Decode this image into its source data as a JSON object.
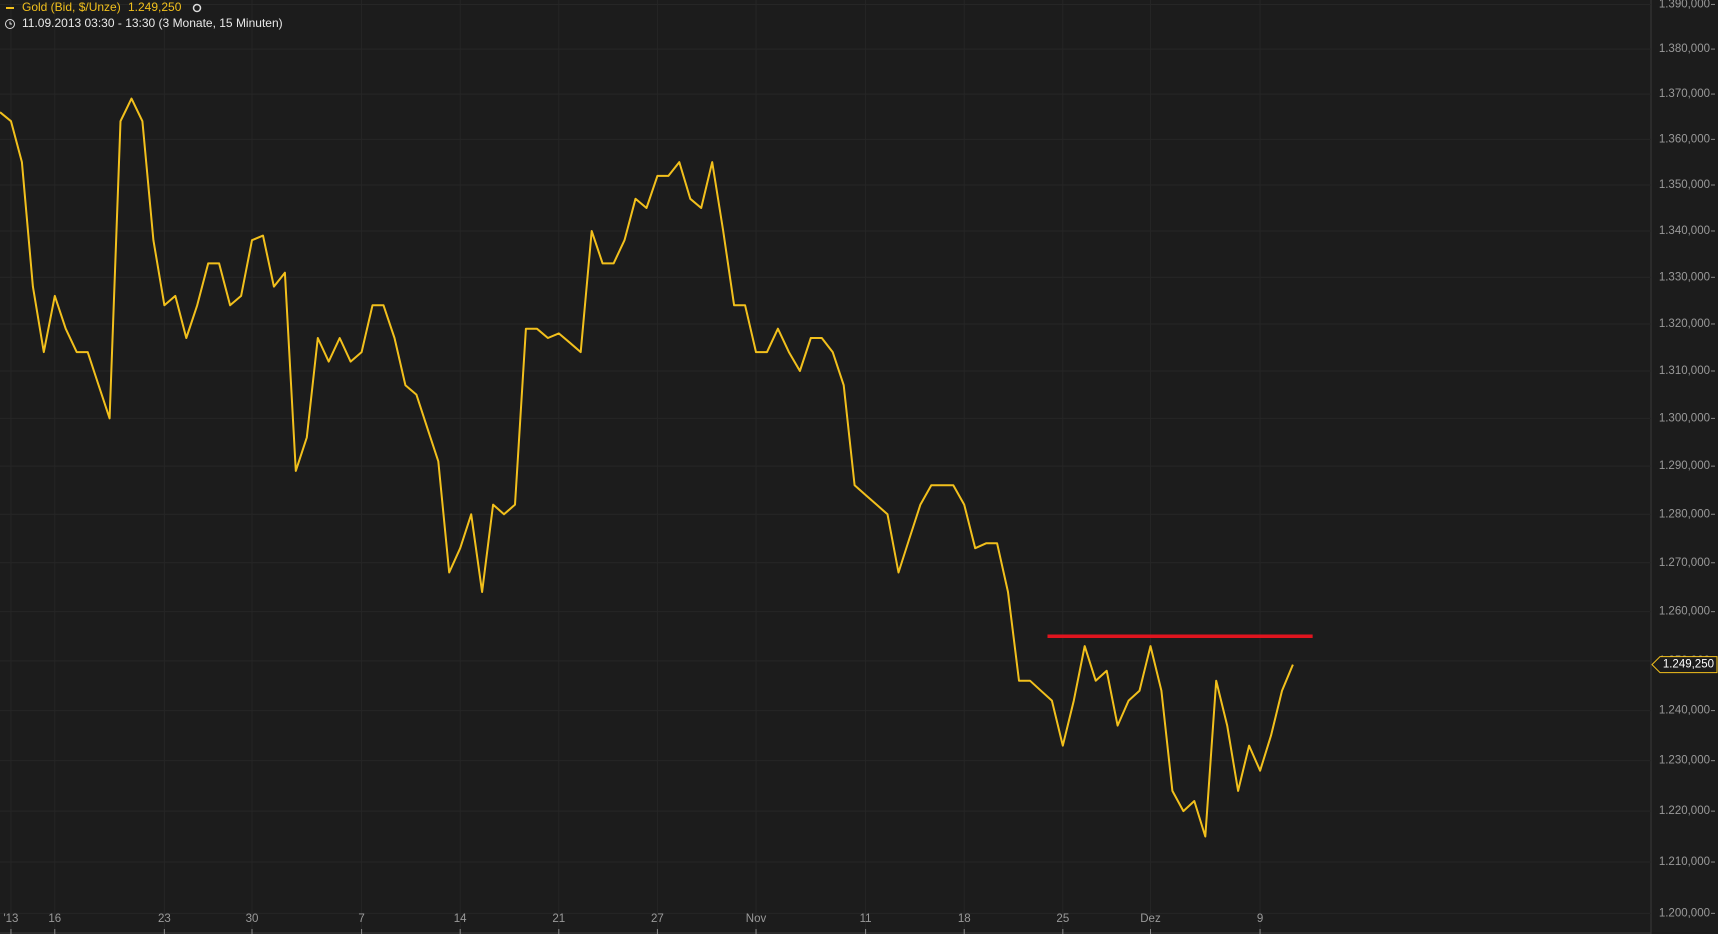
{
  "chart_data": {
    "type": "line",
    "title": "Gold (Bid, $/Unze)",
    "subtitle": "11.09.2013 03:30 - 13:30 (3 Monate, 15 Minuten)",
    "log_scale": true,
    "grid": true,
    "categories": [
      null,
      "'13",
      null,
      null,
      null,
      "16",
      null,
      null,
      null,
      null,
      null,
      null,
      null,
      null,
      null,
      "23",
      null,
      null,
      null,
      null,
      null,
      null,
      null,
      "30",
      null,
      null,
      null,
      null,
      null,
      null,
      null,
      null,
      null,
      "7",
      null,
      null,
      null,
      null,
      null,
      null,
      null,
      null,
      "14",
      null,
      null,
      null,
      null,
      null,
      null,
      null,
      null,
      "21",
      null,
      null,
      null,
      null,
      null,
      null,
      null,
      null,
      "27",
      null,
      null,
      null,
      null,
      null,
      null,
      null,
      null,
      "Nov",
      null,
      null,
      null,
      null,
      null,
      null,
      null,
      null,
      null,
      "11",
      null,
      null,
      null,
      null,
      null,
      null,
      null,
      null,
      "18",
      null,
      null,
      null,
      null,
      null,
      null,
      null,
      null,
      "25",
      null,
      null,
      null,
      null,
      null,
      null,
      null,
      "Dez",
      null,
      null,
      null,
      null,
      null,
      null,
      null,
      null,
      null,
      "9",
      null,
      null,
      null
    ],
    "series": [
      {
        "name": "Gold (Bid, $/Unze)",
        "color": "#f2c01c",
        "last_label": "1.249,250",
        "values": [
          1366,
          1364,
          1355,
          1328,
          1314,
          1326,
          1319,
          1314,
          1314,
          1307,
          1300,
          1364,
          1369,
          1364,
          1338,
          1324,
          1326,
          1317,
          1324,
          1333,
          1333,
          1324,
          1326,
          1338,
          1339,
          1328,
          1331,
          1289,
          1296,
          1317,
          1312,
          1317,
          1312,
          1314,
          1324,
          1324,
          1317,
          1307,
          1305,
          1298,
          1291,
          1268,
          1273,
          1280,
          1264,
          1282,
          1280,
          1282,
          1319,
          1319,
          1317,
          1318,
          1316,
          1314,
          1340,
          1333,
          1333,
          1338,
          1347,
          1345,
          1352,
          1352,
          1355,
          1347,
          1345,
          1355,
          1340,
          1324,
          1324,
          1314,
          1314,
          1319,
          1314,
          1310,
          1317,
          1317,
          1314,
          1307,
          1286,
          1284,
          1282,
          1280,
          1268,
          1275,
          1282,
          1286,
          1286,
          1286,
          1282,
          1273,
          1274,
          1274,
          1264,
          1246,
          1246,
          1244,
          1242,
          1233,
          1242,
          1253,
          1246,
          1248,
          1237,
          1242,
          1244,
          1253,
          1244,
          1224,
          1220,
          1222,
          1215,
          1246,
          1237,
          1224,
          1233,
          1228,
          1235,
          1244,
          1249.25
        ]
      }
    ],
    "reference_lines": [
      {
        "value": 1255,
        "color": "#e0141e"
      }
    ],
    "ylim": [
      1196,
      1391
    ],
    "yticks": [
      {
        "value": 1200,
        "label": "1.200,000"
      },
      {
        "value": 1210,
        "label": "1.210,000"
      },
      {
        "value": 1220,
        "label": "1.220,000"
      },
      {
        "value": 1230,
        "label": "1.230,000"
      },
      {
        "value": 1240,
        "label": "1.240,000"
      },
      {
        "value": 1250,
        "label": "1.250,000"
      },
      {
        "value": 1260,
        "label": "1.260,000"
      },
      {
        "value": 1270,
        "label": "1.270,000"
      },
      {
        "value": 1280,
        "label": "1.280,000"
      },
      {
        "value": 1290,
        "label": "1.290,000"
      },
      {
        "value": 1300,
        "label": "1.300,000"
      },
      {
        "value": 1310,
        "label": "1.310,000"
      },
      {
        "value": 1320,
        "label": "1.320,000"
      },
      {
        "value": 1330,
        "label": "1.330,000"
      },
      {
        "value": 1340,
        "label": "1.340,000"
      },
      {
        "value": 1350,
        "label": "1.350,000"
      },
      {
        "value": 1360,
        "label": "1.360,000"
      },
      {
        "value": 1370,
        "label": "1.370,000"
      },
      {
        "value": 1380,
        "label": "1.380,000"
      },
      {
        "value": 1390,
        "label": "1.390,000"
      }
    ]
  }
}
